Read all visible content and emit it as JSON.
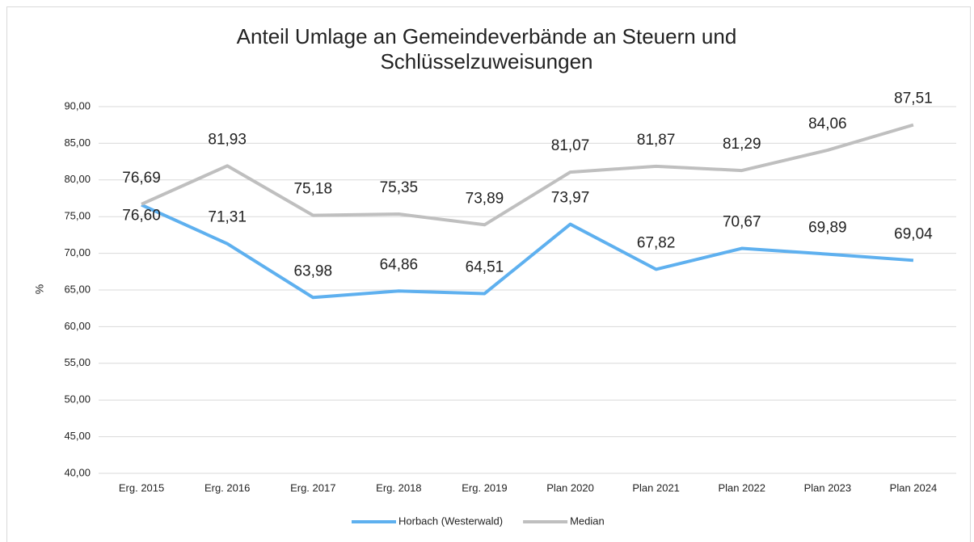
{
  "chart_data": {
    "type": "line",
    "title": "Anteil Umlage an Gemeindeverbände an Steuern und Schlüsselzuweisungen",
    "y_label": "%",
    "categories": [
      "Erg. 2015",
      "Erg. 2016",
      "Erg. 2017",
      "Erg. 2018",
      "Erg. 2019",
      "Plan 2020",
      "Plan 2021",
      "Plan 2022",
      "Plan 2023",
      "Plan 2024"
    ],
    "series": [
      {
        "name": "Horbach (Westerwald)",
        "color": "#5eb0ef",
        "values": [
          76.6,
          71.31,
          63.98,
          64.86,
          64.51,
          73.97,
          67.82,
          70.67,
          69.89,
          69.04
        ],
        "value_labels": [
          "76,60",
          "71,31",
          "63,98",
          "64,86",
          "64,51",
          "73,97",
          "67,82",
          "70,67",
          "69,89",
          "69,04"
        ]
      },
      {
        "name": "Median",
        "color": "#bfbfbf",
        "values": [
          76.69,
          81.93,
          75.18,
          75.35,
          73.89,
          81.07,
          81.87,
          81.29,
          84.06,
          87.51
        ],
        "value_labels": [
          "76,69",
          "81,93",
          "75,18",
          "75,35",
          "73,89",
          "81,07",
          "81,87",
          "81,29",
          "84,06",
          "87,51"
        ]
      }
    ],
    "ylim": [
      40,
      90
    ],
    "yticks": [
      {
        "value": 40,
        "label": "40,00"
      },
      {
        "value": 45,
        "label": "45,00"
      },
      {
        "value": 50,
        "label": "50,00"
      },
      {
        "value": 55,
        "label": "55,00"
      },
      {
        "value": 60,
        "label": "60,00"
      },
      {
        "value": 65,
        "label": "65,00"
      },
      {
        "value": 70,
        "label": "70,00"
      },
      {
        "value": 75,
        "label": "75,00"
      },
      {
        "value": 80,
        "label": "80,00"
      },
      {
        "value": 85,
        "label": "85,00"
      },
      {
        "value": 90,
        "label": "90,00"
      }
    ],
    "grid": true,
    "legend": "bottom"
  }
}
